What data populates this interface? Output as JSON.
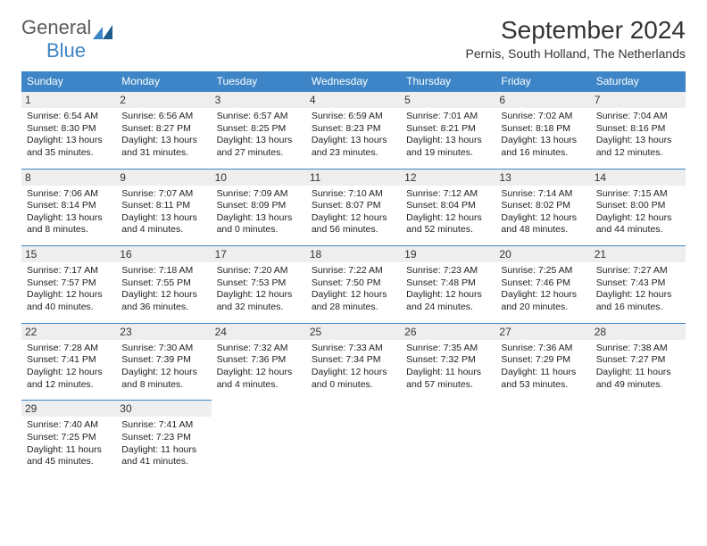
{
  "logo": {
    "text1": "General",
    "text2": "Blue"
  },
  "title": "September 2024",
  "location": "Pernis, South Holland, The Netherlands",
  "header_bg": "#3d85c6",
  "daynum_bg": "#eeeeee",
  "weekdays": [
    "Sunday",
    "Monday",
    "Tuesday",
    "Wednesday",
    "Thursday",
    "Friday",
    "Saturday"
  ],
  "days": [
    {
      "n": "1",
      "sr": "6:54 AM",
      "ss": "8:30 PM",
      "dl": "13 hours and 35 minutes."
    },
    {
      "n": "2",
      "sr": "6:56 AM",
      "ss": "8:27 PM",
      "dl": "13 hours and 31 minutes."
    },
    {
      "n": "3",
      "sr": "6:57 AM",
      "ss": "8:25 PM",
      "dl": "13 hours and 27 minutes."
    },
    {
      "n": "4",
      "sr": "6:59 AM",
      "ss": "8:23 PM",
      "dl": "13 hours and 23 minutes."
    },
    {
      "n": "5",
      "sr": "7:01 AM",
      "ss": "8:21 PM",
      "dl": "13 hours and 19 minutes."
    },
    {
      "n": "6",
      "sr": "7:02 AM",
      "ss": "8:18 PM",
      "dl": "13 hours and 16 minutes."
    },
    {
      "n": "7",
      "sr": "7:04 AM",
      "ss": "8:16 PM",
      "dl": "13 hours and 12 minutes."
    },
    {
      "n": "8",
      "sr": "7:06 AM",
      "ss": "8:14 PM",
      "dl": "13 hours and 8 minutes."
    },
    {
      "n": "9",
      "sr": "7:07 AM",
      "ss": "8:11 PM",
      "dl": "13 hours and 4 minutes."
    },
    {
      "n": "10",
      "sr": "7:09 AM",
      "ss": "8:09 PM",
      "dl": "13 hours and 0 minutes."
    },
    {
      "n": "11",
      "sr": "7:10 AM",
      "ss": "8:07 PM",
      "dl": "12 hours and 56 minutes."
    },
    {
      "n": "12",
      "sr": "7:12 AM",
      "ss": "8:04 PM",
      "dl": "12 hours and 52 minutes."
    },
    {
      "n": "13",
      "sr": "7:14 AM",
      "ss": "8:02 PM",
      "dl": "12 hours and 48 minutes."
    },
    {
      "n": "14",
      "sr": "7:15 AM",
      "ss": "8:00 PM",
      "dl": "12 hours and 44 minutes."
    },
    {
      "n": "15",
      "sr": "7:17 AM",
      "ss": "7:57 PM",
      "dl": "12 hours and 40 minutes."
    },
    {
      "n": "16",
      "sr": "7:18 AM",
      "ss": "7:55 PM",
      "dl": "12 hours and 36 minutes."
    },
    {
      "n": "17",
      "sr": "7:20 AM",
      "ss": "7:53 PM",
      "dl": "12 hours and 32 minutes."
    },
    {
      "n": "18",
      "sr": "7:22 AM",
      "ss": "7:50 PM",
      "dl": "12 hours and 28 minutes."
    },
    {
      "n": "19",
      "sr": "7:23 AM",
      "ss": "7:48 PM",
      "dl": "12 hours and 24 minutes."
    },
    {
      "n": "20",
      "sr": "7:25 AM",
      "ss": "7:46 PM",
      "dl": "12 hours and 20 minutes."
    },
    {
      "n": "21",
      "sr": "7:27 AM",
      "ss": "7:43 PM",
      "dl": "12 hours and 16 minutes."
    },
    {
      "n": "22",
      "sr": "7:28 AM",
      "ss": "7:41 PM",
      "dl": "12 hours and 12 minutes."
    },
    {
      "n": "23",
      "sr": "7:30 AM",
      "ss": "7:39 PM",
      "dl": "12 hours and 8 minutes."
    },
    {
      "n": "24",
      "sr": "7:32 AM",
      "ss": "7:36 PM",
      "dl": "12 hours and 4 minutes."
    },
    {
      "n": "25",
      "sr": "7:33 AM",
      "ss": "7:34 PM",
      "dl": "12 hours and 0 minutes."
    },
    {
      "n": "26",
      "sr": "7:35 AM",
      "ss": "7:32 PM",
      "dl": "11 hours and 57 minutes."
    },
    {
      "n": "27",
      "sr": "7:36 AM",
      "ss": "7:29 PM",
      "dl": "11 hours and 53 minutes."
    },
    {
      "n": "28",
      "sr": "7:38 AM",
      "ss": "7:27 PM",
      "dl": "11 hours and 49 minutes."
    },
    {
      "n": "29",
      "sr": "7:40 AM",
      "ss": "7:25 PM",
      "dl": "11 hours and 45 minutes."
    },
    {
      "n": "30",
      "sr": "7:41 AM",
      "ss": "7:23 PM",
      "dl": "11 hours and 41 minutes."
    }
  ],
  "labels": {
    "sunrise": "Sunrise:",
    "sunset": "Sunset:",
    "daylight": "Daylight:"
  }
}
